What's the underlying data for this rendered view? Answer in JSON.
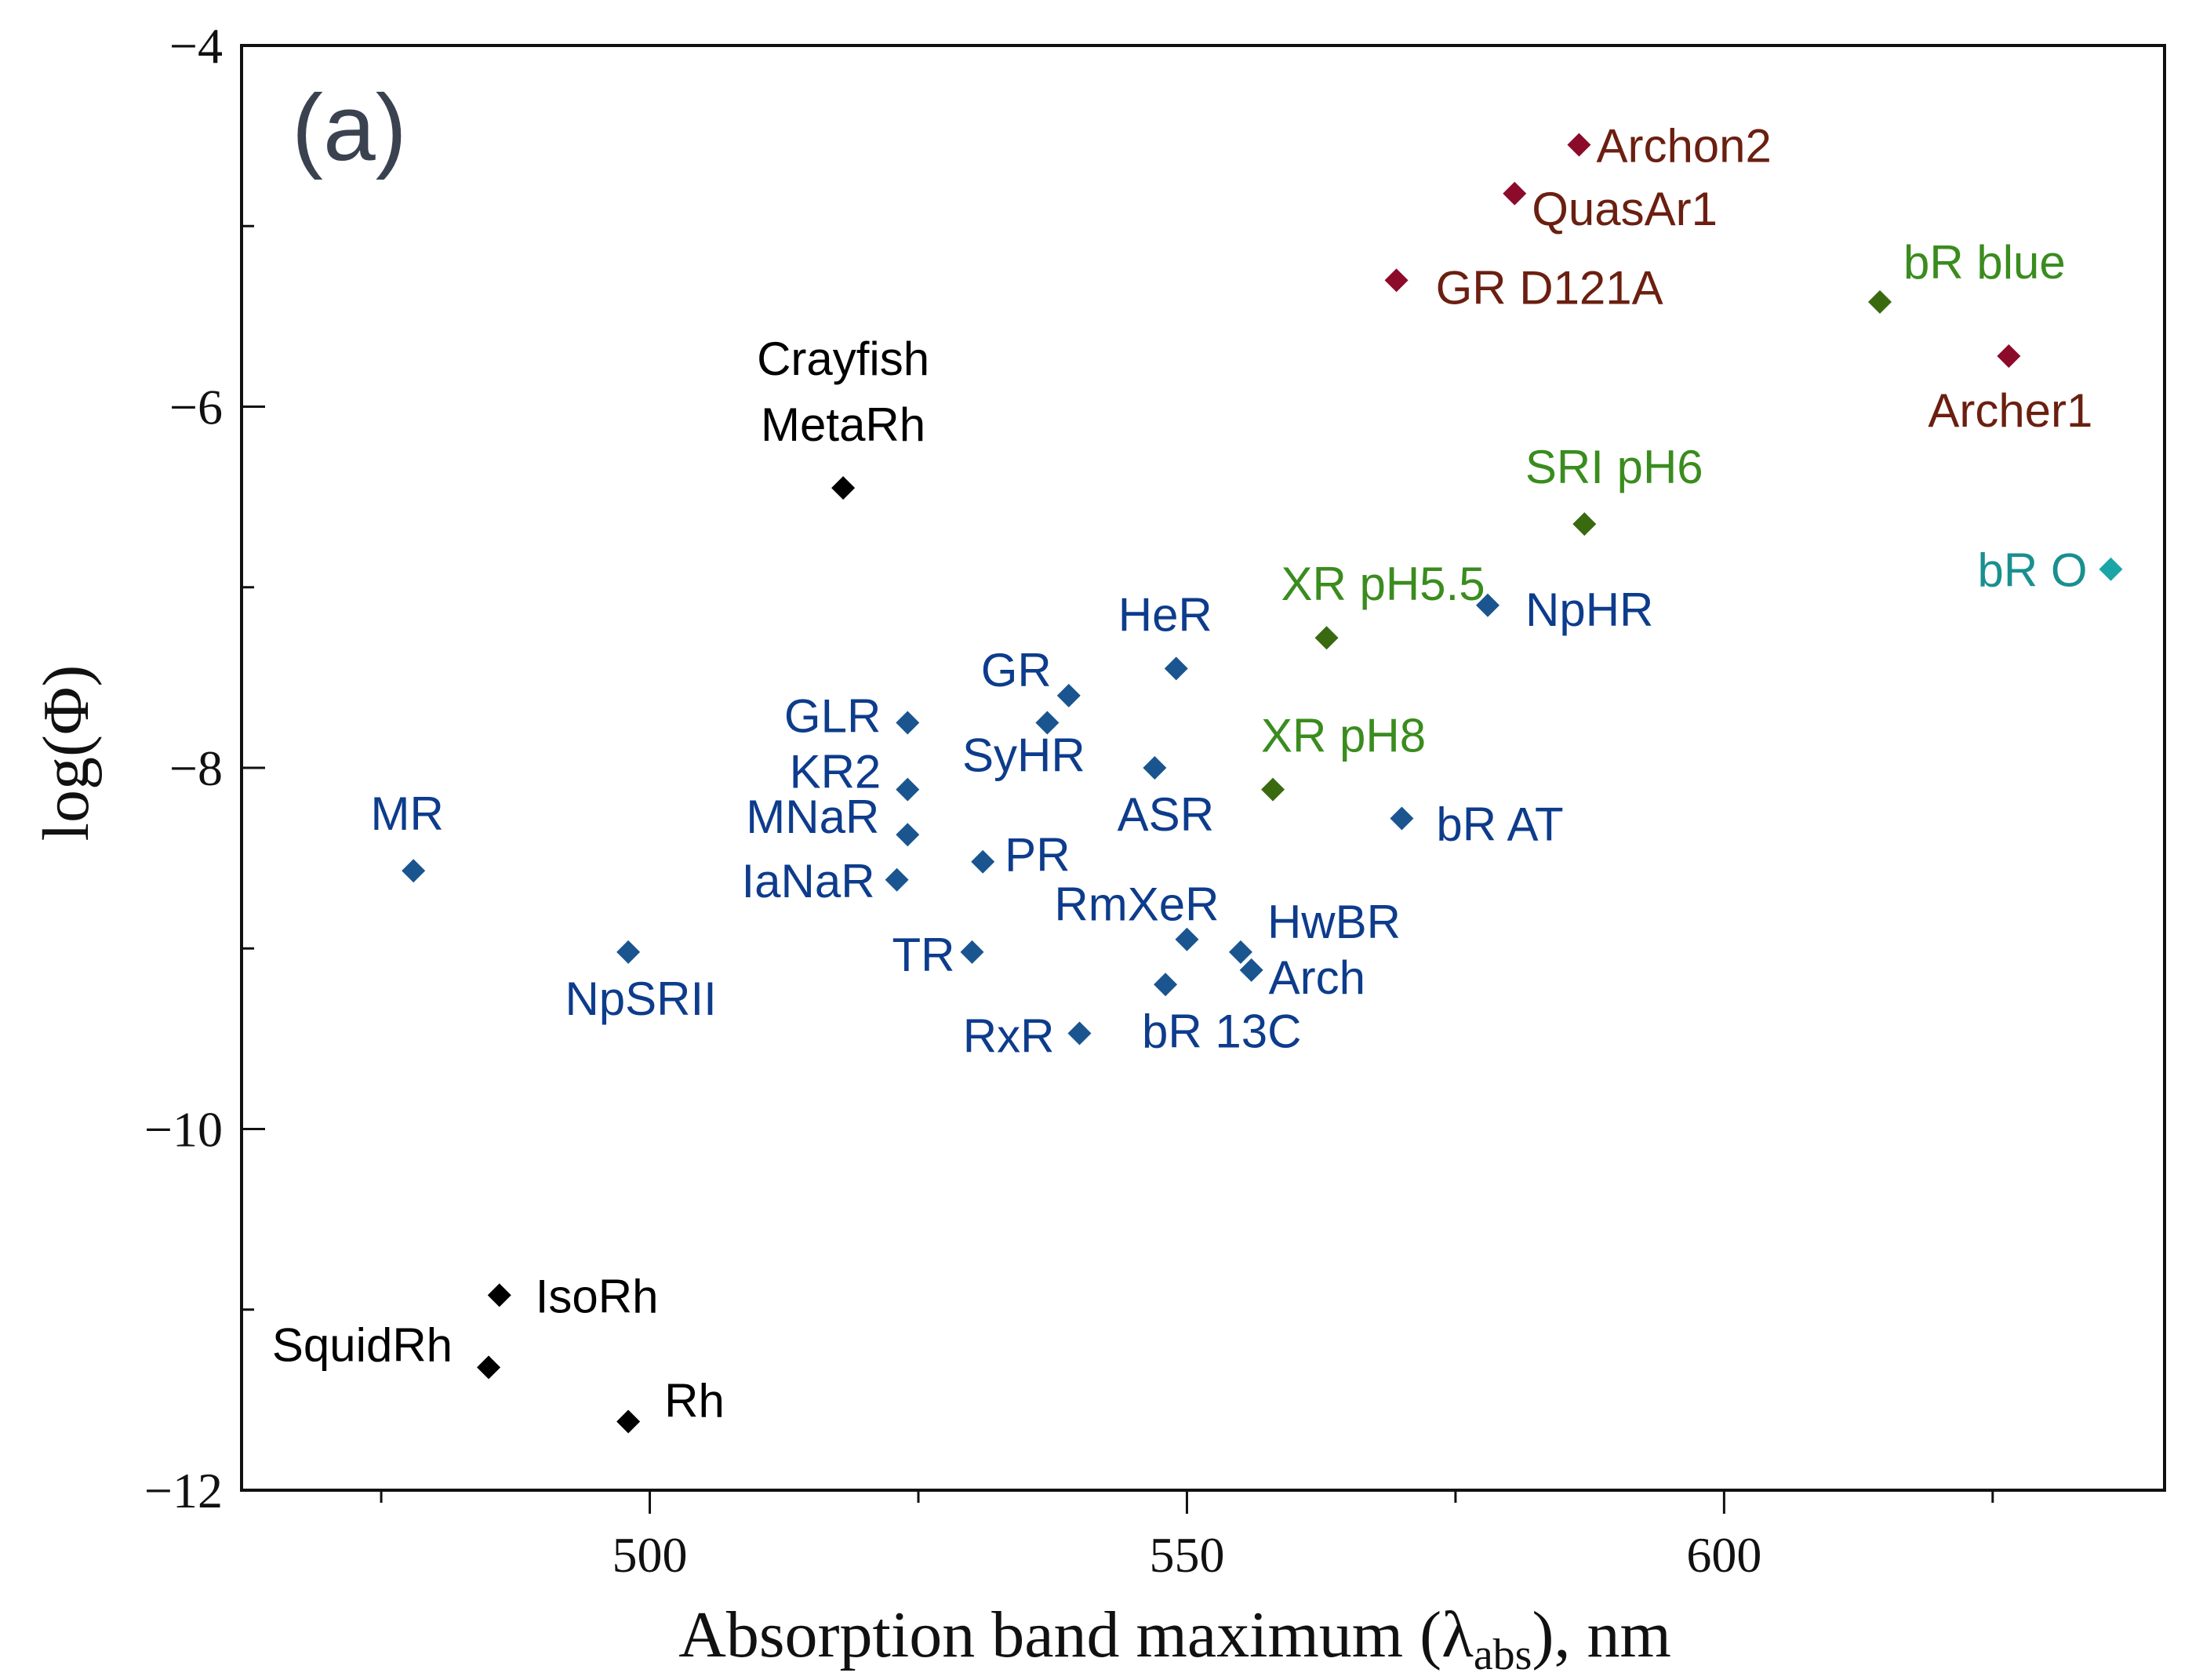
{
  "chart_data": {
    "type": "scatter",
    "panel_label": "(a)",
    "xlabel": {
      "main": "Absorption band maximum (λ",
      "sub": "abs",
      "tail": "), nm"
    },
    "ylabel": "log(Φ)",
    "xlim": [
      462,
      641
    ],
    "ylim": [
      -12,
      -4
    ],
    "x_ticks": [
      500,
      550,
      600
    ],
    "x_minor_ticks": [
      475,
      525,
      575,
      625
    ],
    "y_ticks": [
      -4,
      -6,
      -8,
      -10,
      -12
    ],
    "y_tick_labels": [
      "−4",
      "−6",
      "−8",
      "−10",
      "−12"
    ],
    "y_minor_ticks": [
      -5,
      -7,
      -9,
      -11
    ],
    "grid": false,
    "colors": {
      "black": "#000000",
      "blue": "#0d3c8c",
      "blue_marker": "#1a5590",
      "green": "#3a8c1e",
      "green_marker": "#3a6a10",
      "red": "#6b1f10",
      "red_marker": "#8c0a2a",
      "teal": "#1a8f8f",
      "teal_marker": "#1aa6a6"
    },
    "points": [
      {
        "label": "Archon2",
        "x": 586.5,
        "y": -4.55,
        "group": "red",
        "anchor": "start",
        "dx": 22,
        "dy": 22
      },
      {
        "label": "QuasAr1",
        "x": 580.5,
        "y": -4.82,
        "group": "red",
        "anchor": "start",
        "dx": 22,
        "dy": 40
      },
      {
        "label": "GR D121A",
        "x": 569.5,
        "y": -5.3,
        "group": "red",
        "anchor": "start",
        "dx": 50,
        "dy": 30
      },
      {
        "label": "Archer1",
        "x": 626.5,
        "y": -5.72,
        "group": "red",
        "anchor": "middle",
        "dx": 2,
        "dy": 90
      },
      {
        "label": "bR blue",
        "x": 614.5,
        "y": -5.42,
        "group": "green",
        "anchor": "start",
        "dx": 30,
        "dy": -30
      },
      {
        "label": "SRI pH6",
        "x": 587,
        "y": -6.65,
        "group": "green",
        "anchor": "middle",
        "dx": 38,
        "dy": -52
      },
      {
        "label": "XR pH5.5",
        "x": 563,
        "y": -7.28,
        "group": "green",
        "anchor": "middle",
        "dx": 72,
        "dy": -48
      },
      {
        "label": "XR pH8",
        "x": 558,
        "y": -8.12,
        "group": "green",
        "anchor": "middle",
        "dx": 90,
        "dy": -48
      },
      {
        "label": "bR O",
        "x": 636,
        "y": -6.9,
        "group": "teal",
        "anchor": "end",
        "dx": -30,
        "dy": 22
      },
      {
        "label": "Crayfish",
        "x": 518,
        "y": -6.45,
        "group": "black",
        "anchor": "middle",
        "dx": 0,
        "dy": -144
      },
      {
        "label": "MetaRh",
        "x": 518,
        "y": -6.45,
        "group": "black",
        "anchor": "middle",
        "dx": 0,
        "dy": -60
      },
      {
        "label": "IsoRh",
        "x": 486,
        "y": -10.92,
        "group": "black",
        "anchor": "start",
        "dx": 46,
        "dy": 22
      },
      {
        "label": "SquidRh",
        "x": 485,
        "y": -11.32,
        "group": "black",
        "anchor": "end",
        "dx": -46,
        "dy": -8
      },
      {
        "label": "Rh",
        "x": 498,
        "y": -11.62,
        "group": "black",
        "anchor": "start",
        "dx": 46,
        "dy": -6
      },
      {
        "label": "HeR",
        "x": 549,
        "y": -7.45,
        "group": "blue",
        "anchor": "middle",
        "dx": -14,
        "dy": -48
      },
      {
        "label": "NpHR",
        "x": 578,
        "y": -7.1,
        "group": "blue",
        "anchor": "start",
        "dx": 48,
        "dy": 26
      },
      {
        "label": "GR",
        "x": 539,
        "y": -7.6,
        "group": "blue",
        "anchor": "end",
        "dx": -22,
        "dy": -12
      },
      {
        "label": "GLR",
        "x": 524,
        "y": -7.75,
        "group": "blue",
        "anchor": "end",
        "dx": -34,
        "dy": 12
      },
      {
        "label": "SyHR",
        "x": 537,
        "y": -7.75,
        "group": "blue",
        "anchor": "middle",
        "dx": -30,
        "dy": 62
      },
      {
        "label": "KR2",
        "x": 524,
        "y": -8.12,
        "group": "blue",
        "anchor": "end",
        "dx": -34,
        "dy": -2
      },
      {
        "label": "ASR",
        "x": 547,
        "y": -8.0,
        "group": "blue",
        "anchor": "middle",
        "dx": 14,
        "dy": 80
      },
      {
        "label": "bR AT",
        "x": 570,
        "y": -8.28,
        "group": "blue",
        "anchor": "start",
        "dx": 44,
        "dy": 28
      },
      {
        "label": "MR",
        "x": 478,
        "y": -8.57,
        "group": "blue",
        "anchor": "middle",
        "dx": -8,
        "dy": -52
      },
      {
        "label": "MNaR",
        "x": 524,
        "y": -8.37,
        "group": "blue",
        "anchor": "end",
        "dx": -36,
        "dy": -2
      },
      {
        "label": "PR",
        "x": 531,
        "y": -8.52,
        "group": "blue",
        "anchor": "start",
        "dx": 28,
        "dy": 12
      },
      {
        "label": "IaNaR",
        "x": 523,
        "y": -8.62,
        "group": "blue",
        "anchor": "end",
        "dx": -28,
        "dy": 22
      },
      {
        "label": "RmXeR",
        "x": 550,
        "y": -8.95,
        "group": "blue",
        "anchor": "middle",
        "dx": -64,
        "dy": -24
      },
      {
        "label": "HwBR",
        "x": 555,
        "y": -9.02,
        "group": "blue",
        "anchor": "start",
        "dx": 34,
        "dy": -18
      },
      {
        "label": "Arch",
        "x": 556,
        "y": -9.12,
        "group": "blue",
        "anchor": "start",
        "dx": 22,
        "dy": 30
      },
      {
        "label": "NpSRII",
        "x": 498,
        "y": -9.02,
        "group": "blue",
        "anchor": "middle",
        "dx": 16,
        "dy": 80
      },
      {
        "label": "TR",
        "x": 530,
        "y": -9.02,
        "group": "blue",
        "anchor": "end",
        "dx": -22,
        "dy": 24
      },
      {
        "label": "bR 13C",
        "x": 548,
        "y": -9.2,
        "group": "blue",
        "anchor": "start",
        "dx": -30,
        "dy": 80
      },
      {
        "label": "RxR",
        "x": 540,
        "y": -9.47,
        "group": "blue",
        "anchor": "end",
        "dx": -32,
        "dy": 24
      }
    ]
  }
}
